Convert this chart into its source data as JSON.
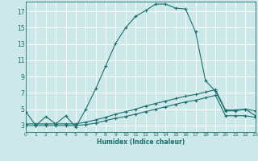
{
  "bg_color": "#cce8e8",
  "grid_color": "#ffffff",
  "line_color": "#1a6e6e",
  "xlabel": "Humidex (Indice chaleur)",
  "xlim": [
    0,
    23
  ],
  "ylim": [
    2.2,
    18.2
  ],
  "xticks": [
    0,
    1,
    2,
    3,
    4,
    5,
    6,
    7,
    8,
    9,
    10,
    11,
    12,
    13,
    14,
    15,
    16,
    17,
    18,
    19,
    20,
    21,
    22,
    23
  ],
  "yticks": [
    3,
    5,
    7,
    9,
    11,
    13,
    15,
    17
  ],
  "line1_x": [
    0,
    1,
    2,
    3,
    4,
    5,
    6,
    7,
    8,
    9,
    10,
    11,
    12,
    13,
    14,
    15,
    16,
    17,
    18,
    19,
    20,
    21,
    22,
    23
  ],
  "line1_y": [
    4.7,
    3.0,
    4.1,
    3.2,
    4.2,
    2.8,
    5.0,
    7.5,
    10.3,
    13.1,
    15.0,
    16.4,
    17.1,
    17.9,
    17.9,
    17.4,
    17.3,
    14.5,
    8.5,
    7.2,
    4.8,
    4.8,
    5.0,
    4.2
  ],
  "line2_x": [
    0,
    1,
    2,
    3,
    4,
    5,
    6,
    7,
    8,
    9,
    10,
    11,
    12,
    13,
    14,
    15,
    16,
    17,
    18,
    19,
    20,
    21,
    22,
    23
  ],
  "line2_y": [
    3.2,
    3.2,
    3.2,
    3.2,
    3.2,
    3.2,
    3.4,
    3.7,
    4.0,
    4.4,
    4.7,
    5.0,
    5.4,
    5.7,
    6.0,
    6.3,
    6.6,
    6.8,
    7.1,
    7.4,
    4.9,
    4.9,
    5.0,
    4.8
  ],
  "line3_x": [
    0,
    1,
    2,
    3,
    4,
    5,
    6,
    7,
    8,
    9,
    10,
    11,
    12,
    13,
    14,
    15,
    16,
    17,
    18,
    19,
    20,
    21,
    22,
    23
  ],
  "line3_y": [
    3.0,
    3.0,
    3.0,
    3.0,
    3.0,
    3.0,
    3.1,
    3.3,
    3.6,
    3.9,
    4.1,
    4.4,
    4.7,
    5.0,
    5.3,
    5.6,
    5.9,
    6.1,
    6.4,
    6.7,
    4.2,
    4.2,
    4.2,
    4.0
  ]
}
